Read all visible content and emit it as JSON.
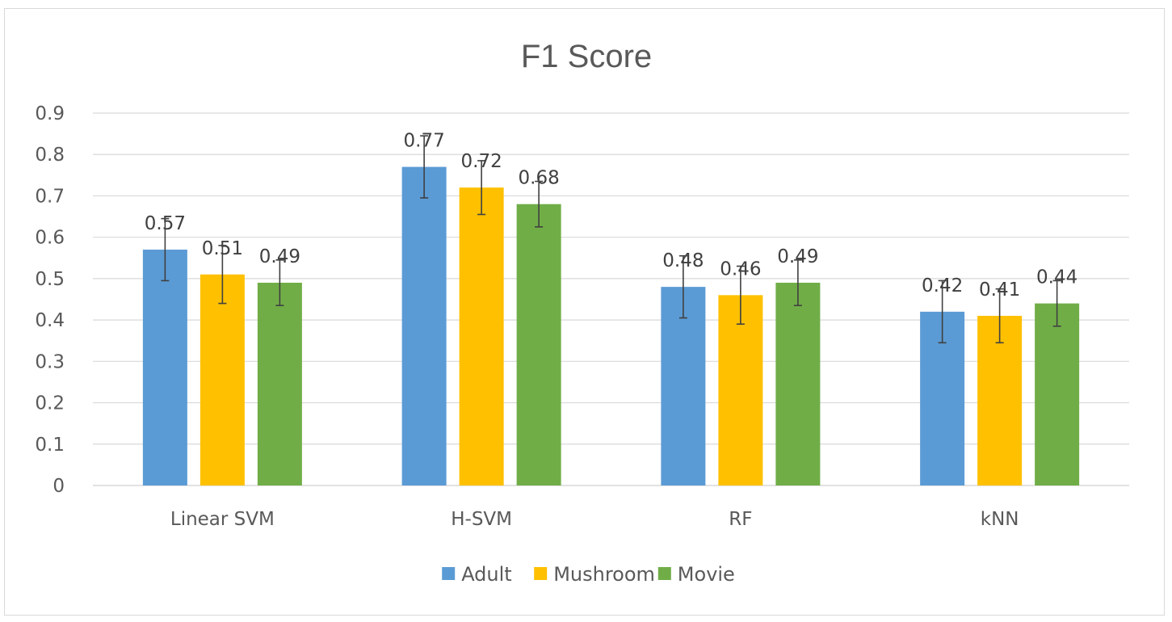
{
  "chart_data": {
    "type": "bar",
    "title": "F1 Score",
    "categories": [
      "Linear SVM",
      "H-SVM",
      "RF",
      "kNN"
    ],
    "series": [
      {
        "name": "Adult",
        "color": "#5b9bd5",
        "values": [
          0.57,
          0.77,
          0.48,
          0.42
        ],
        "labels": [
          "0.57",
          "0.77",
          "0.48",
          "0.42"
        ],
        "err": [
          0.075,
          0.075,
          0.075,
          0.075
        ]
      },
      {
        "name": "Mushroom",
        "color": "#ffc000",
        "values": [
          0.51,
          0.72,
          0.46,
          0.41
        ],
        "labels": [
          "0.51",
          "0.72",
          "0.46",
          "0.41"
        ],
        "err": [
          0.07,
          0.065,
          0.07,
          0.065
        ]
      },
      {
        "name": "Movie",
        "color": "#70ad47",
        "values": [
          0.49,
          0.68,
          0.49,
          0.44
        ],
        "labels": [
          "0.49",
          "0.68",
          "0.49",
          "0.44"
        ],
        "err": [
          0.055,
          0.055,
          0.055,
          0.055
        ]
      }
    ],
    "ylim": [
      0,
      0.9
    ],
    "yticks": [
      "0",
      "0.1",
      "0.2",
      "0.3",
      "0.4",
      "0.5",
      "0.6",
      "0.7",
      "0.8",
      "0.9"
    ],
    "xlabel": "",
    "ylabel": "",
    "legend": "bottom",
    "grid": true
  }
}
